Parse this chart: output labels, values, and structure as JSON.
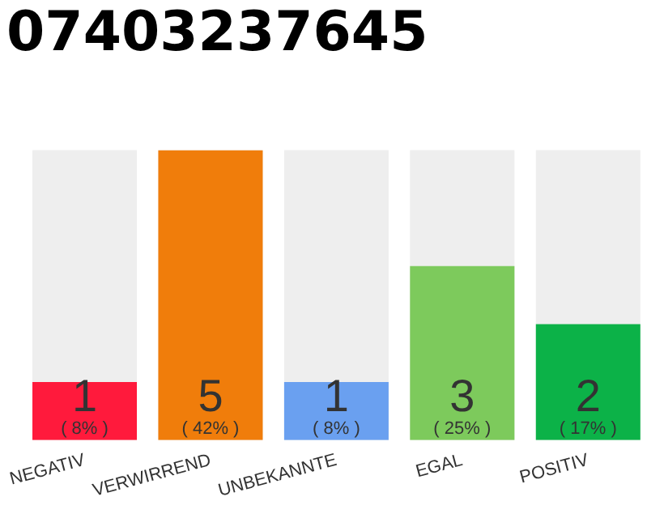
{
  "chart_data": {
    "type": "bar",
    "title": "07403237645",
    "categories": [
      "NEGATIV",
      "VERWIRREND",
      "UNBEKANNTE",
      "EGAL",
      "POSITIV"
    ],
    "values": [
      1,
      5,
      1,
      3,
      2
    ],
    "colors": [
      "#ff1a3c",
      "#f07d0b",
      "#6aa0f0",
      "#7dca5c",
      "#0cb248"
    ],
    "value_labels": [
      "1\n( 8% )",
      "5\n( 42% )",
      "1\n( 8% )",
      "3\n( 25% )",
      "2\n( 17% )"
    ],
    "grid": false,
    "legend": false
  }
}
